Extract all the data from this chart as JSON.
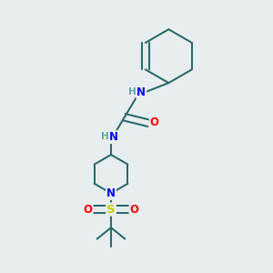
{
  "background_color": "#e8edf0",
  "bond_color": "#2d6e6e",
  "N_color": "#0000ff",
  "O_color": "#ff0000",
  "S_color": "#cccc00",
  "H_color": "#5aabab",
  "line_width": 1.5,
  "figsize": [
    3.0,
    3.0
  ],
  "dpi": 100,
  "xlim": [
    0,
    10
  ],
  "ylim": [
    0,
    10
  ]
}
